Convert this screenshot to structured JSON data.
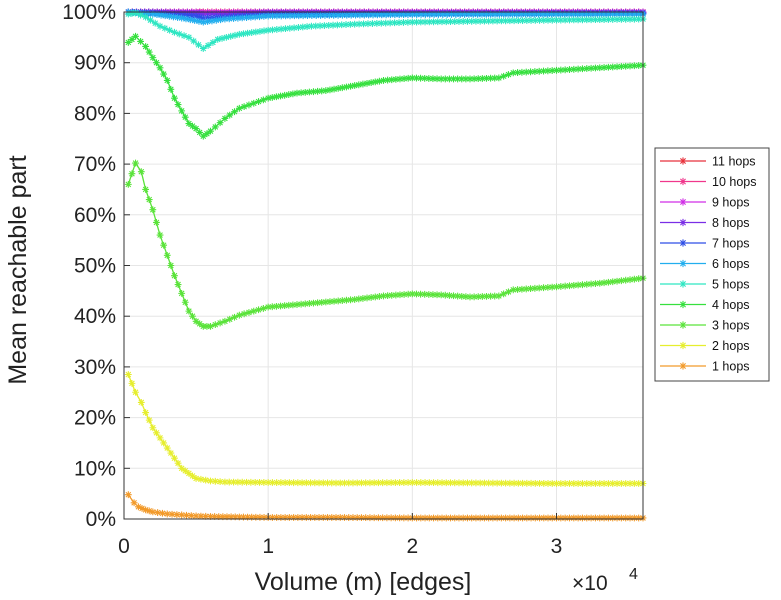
{
  "chart_data": {
    "type": "line",
    "xlabel": "Volume (m) [edges]",
    "ylabel": "Mean reachable part",
    "x_multiplier": {
      "base": "×10",
      "exponent": "4"
    },
    "xlim": [
      0,
      36000
    ],
    "ylim": [
      0,
      100
    ],
    "xticks": [
      {
        "value": 0,
        "label": "0"
      },
      {
        "value": 10000,
        "label": "1"
      },
      {
        "value": 20000,
        "label": "2"
      },
      {
        "value": 30000,
        "label": "3"
      }
    ],
    "yticks": [
      {
        "value": 0,
        "label": "0%"
      },
      {
        "value": 10,
        "label": "10%"
      },
      {
        "value": 20,
        "label": "20%"
      },
      {
        "value": 30,
        "label": "30%"
      },
      {
        "value": 40,
        "label": "40%"
      },
      {
        "value": 50,
        "label": "50%"
      },
      {
        "value": 60,
        "label": "60%"
      },
      {
        "value": 70,
        "label": "70%"
      },
      {
        "value": 80,
        "label": "80%"
      },
      {
        "value": 90,
        "label": "90%"
      },
      {
        "value": 100,
        "label": "100%"
      }
    ],
    "grid": true,
    "legend_position": "right",
    "series": [
      {
        "name": "11 hops",
        "color": "#e8323c",
        "x": [
          300,
          2000,
          5000,
          5500,
          10000,
          20000,
          36000
        ],
        "values": [
          100,
          100,
          100,
          100,
          100,
          100,
          100
        ]
      },
      {
        "name": "10 hops",
        "color": "#f0378c",
        "x": [
          300,
          2000,
          5000,
          5500,
          10000,
          20000,
          36000
        ],
        "values": [
          100,
          100,
          100,
          100,
          100,
          100,
          100
        ]
      },
      {
        "name": "9 hops",
        "color": "#d02ee6",
        "x": [
          300,
          2000,
          5000,
          5500,
          10000,
          20000,
          36000
        ],
        "values": [
          100,
          100,
          100,
          99.9,
          100,
          100,
          100
        ]
      },
      {
        "name": "8 hops",
        "color": "#7a2ee6",
        "x": [
          300,
          2000,
          5000,
          5500,
          10000,
          20000,
          36000
        ],
        "values": [
          100,
          100,
          99.8,
          99.6,
          99.9,
          99.9,
          99.9
        ]
      },
      {
        "name": "7 hops",
        "color": "#2e4ee6",
        "x": [
          300,
          2000,
          5000,
          5500,
          10000,
          20000,
          36000
        ],
        "values": [
          100,
          99.8,
          99.2,
          98.8,
          99.5,
          99.6,
          99.7
        ]
      },
      {
        "name": "6 hops",
        "color": "#22aeee",
        "x": [
          300,
          1000,
          2000,
          4000,
          5500,
          7000,
          10000,
          20000,
          36000
        ],
        "values": [
          100,
          99.8,
          99.6,
          98.8,
          98.0,
          98.6,
          99.2,
          99.5,
          99.6
        ]
      },
      {
        "name": "5 hops",
        "color": "#2ee6c2",
        "x": [
          300,
          800,
          1500,
          2500,
          3500,
          4500,
          5500,
          6500,
          8000,
          10000,
          13000,
          16000,
          20000,
          25000,
          30000,
          36000
        ],
        "values": [
          99.6,
          99.8,
          99.0,
          97.2,
          96.0,
          95.0,
          92.8,
          94.6,
          95.6,
          96.4,
          97.2,
          97.6,
          98.0,
          98.2,
          98.4,
          98.6
        ]
      },
      {
        "name": "4 hops",
        "color": "#36e03e",
        "x": [
          300,
          800,
          1500,
          2000,
          2500,
          3000,
          3500,
          4000,
          4500,
          5000,
          5500,
          6000,
          7000,
          8000,
          9000,
          10000,
          12000,
          14000,
          16000,
          18000,
          20000,
          22000,
          24000,
          26000,
          27000,
          30000,
          33000,
          36000
        ],
        "values": [
          94.0,
          95.2,
          93.2,
          91.0,
          89.0,
          86.5,
          83.0,
          80.5,
          78.0,
          77.0,
          75.5,
          76.5,
          79.0,
          81.0,
          82.0,
          83.0,
          84.0,
          84.5,
          85.5,
          86.5,
          87.0,
          86.8,
          86.8,
          87.0,
          88.0,
          88.5,
          89.0,
          89.5
        ]
      },
      {
        "name": "3 hops",
        "color": "#5ae33a",
        "x": [
          300,
          800,
          1200,
          1500,
          2000,
          2500,
          3000,
          3500,
          4000,
          4500,
          5000,
          5500,
          6000,
          7000,
          8000,
          9000,
          10000,
          12000,
          14000,
          16000,
          18000,
          20000,
          22000,
          24000,
          26000,
          27000,
          30000,
          33000,
          36000
        ],
        "values": [
          66.0,
          70.2,
          68.5,
          65.0,
          61.0,
          56.0,
          52.0,
          48.0,
          44.5,
          41.0,
          39.0,
          38.0,
          38.0,
          39.0,
          40.2,
          41.0,
          41.8,
          42.3,
          42.8,
          43.3,
          44.0,
          44.4,
          44.2,
          43.8,
          44.0,
          45.2,
          45.8,
          46.5,
          47.5
        ]
      },
      {
        "name": "2 hops",
        "color": "#e6ee2e",
        "x": [
          300,
          800,
          1200,
          1500,
          2000,
          2500,
          3000,
          3500,
          4000,
          4500,
          5000,
          6000,
          7000,
          10000,
          15000,
          20000,
          25000,
          30000,
          36000
        ],
        "values": [
          28.5,
          25.0,
          23.0,
          21.0,
          18.0,
          16.0,
          14.0,
          12.0,
          10.0,
          9.0,
          8.0,
          7.5,
          7.3,
          7.2,
          7.1,
          7.2,
          7.1,
          7.0,
          7.0
        ]
      },
      {
        "name": "1 hops",
        "color": "#f29a2a",
        "x": [
          300,
          700,
          1000,
          1500,
          2000,
          3000,
          4000,
          5000,
          6000,
          8000,
          10000,
          15000,
          20000,
          25000,
          30000,
          36000
        ],
        "values": [
          4.8,
          3.2,
          2.4,
          1.8,
          1.4,
          1.0,
          0.8,
          0.6,
          0.5,
          0.4,
          0.3,
          0.3,
          0.2,
          0.2,
          0.2,
          0.2
        ]
      }
    ]
  }
}
